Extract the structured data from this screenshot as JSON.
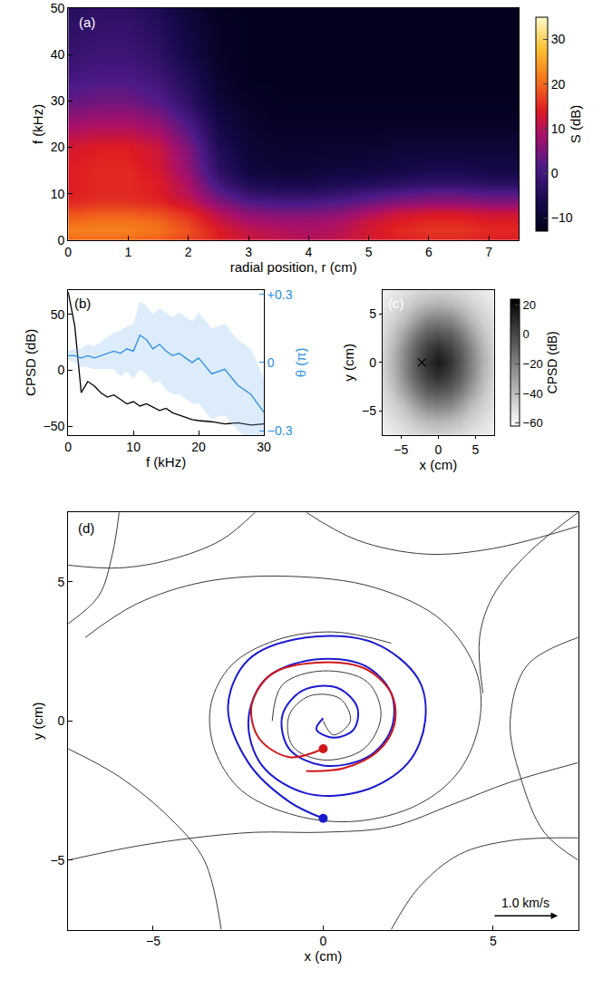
{
  "chart_data": [
    {
      "type": "heatmap",
      "panel": "(a)",
      "xlabel": "radial position, r (cm)",
      "ylabel": "f (kHz)",
      "x": [
        0,
        0.5,
        1,
        1.5,
        2,
        2.5,
        3,
        3.5,
        4,
        4.5,
        5,
        5.5,
        6,
        6.5,
        7,
        7.5
      ],
      "y": [
        0,
        2,
        4,
        6,
        8,
        10,
        12,
        15,
        20,
        25,
        30,
        35,
        40,
        45,
        50
      ],
      "z": [
        [
          20,
          20,
          20,
          19,
          17,
          14,
          12,
          11,
          10,
          11,
          13,
          14,
          15,
          15,
          14,
          14
        ],
        [
          22,
          22,
          22,
          21,
          18,
          14,
          11,
          10,
          9,
          10,
          13,
          15,
          16,
          16,
          15,
          15
        ],
        [
          20,
          21,
          21,
          20,
          17,
          12,
          9,
          8,
          8,
          9,
          12,
          14,
          15,
          15,
          14,
          14
        ],
        [
          18,
          19,
          19,
          18,
          15,
          10,
          6,
          5,
          5,
          6,
          9,
          12,
          13,
          13,
          12,
          12
        ],
        [
          15,
          16,
          16,
          15,
          12,
          6,
          2,
          1,
          1,
          2,
          4,
          6,
          7,
          7,
          6,
          6
        ],
        [
          14,
          15,
          15,
          14,
          10,
          3,
          -2,
          -3,
          -3,
          -2,
          0,
          2,
          3,
          3,
          2,
          2
        ],
        [
          14,
          15,
          15,
          14,
          9,
          0,
          -5,
          -6,
          -6,
          -5,
          -4,
          -3,
          -2,
          -2,
          -3,
          -3
        ],
        [
          14,
          15,
          15,
          13,
          7,
          -3,
          -8,
          -9,
          -9,
          -8,
          -8,
          -7,
          -6,
          -6,
          -7,
          -7
        ],
        [
          13,
          14,
          14,
          12,
          5,
          -5,
          -9,
          -10,
          -10,
          -10,
          -10,
          -9,
          -9,
          -9,
          -9,
          -9
        ],
        [
          8,
          9,
          9,
          7,
          1,
          -7,
          -10,
          -11,
          -11,
          -11,
          -11,
          -11,
          -11,
          -11,
          -11,
          -11
        ],
        [
          3,
          4,
          4,
          2,
          -3,
          -9,
          -11,
          -12,
          -12,
          -12,
          -12,
          -12,
          -12,
          -12,
          -12,
          -12
        ],
        [
          0,
          1,
          1,
          -1,
          -5,
          -10,
          -12,
          -12,
          -12,
          -12,
          -12,
          -12,
          -12,
          -12,
          -12,
          -12
        ],
        [
          -2,
          -1,
          -1,
          -3,
          -7,
          -11,
          -12,
          -12,
          -12,
          -12,
          -12,
          -12,
          -12,
          -12,
          -12,
          -12
        ],
        [
          -3,
          -2,
          -2,
          -4,
          -8,
          -11,
          -12,
          -12,
          -12,
          -12,
          -12,
          -12,
          -12,
          -12,
          -12,
          -12
        ],
        [
          -4,
          -3,
          -3,
          -5,
          -9,
          -12,
          -12,
          -12,
          -12,
          -12,
          -12,
          -12,
          -12,
          -12,
          -12,
          -12
        ]
      ],
      "xlim": [
        0,
        7.5
      ],
      "ylim": [
        0,
        50
      ],
      "xticks": [
        0,
        1,
        2,
        3,
        4,
        5,
        6,
        7
      ],
      "yticks": [
        0,
        10,
        20,
        30,
        40,
        50
      ],
      "colorbar": {
        "title": "S (dB)",
        "range": [
          -13,
          35
        ],
        "ticks": [
          {
            "value": -10,
            "label": "−10"
          },
          0,
          10,
          20,
          30
        ]
      }
    },
    {
      "type": "line",
      "panel": "(b)",
      "xlabel": "f (kHz)",
      "ylabel": "CPSD (dB)",
      "y2label": "θ (π)",
      "x": [
        0,
        1,
        2,
        3,
        4,
        5,
        6,
        7,
        8,
        9,
        10,
        11,
        12,
        13,
        14,
        15,
        16,
        17,
        18,
        19,
        20,
        22,
        24,
        26,
        28,
        30
      ],
      "series": [
        {
          "color": "#000000",
          "values": [
            70,
            40,
            -20,
            -10,
            -14,
            -20,
            -24,
            -22,
            -26,
            -30,
            -28,
            -32,
            -30,
            -33,
            -36,
            -34,
            -38,
            -40,
            -42,
            -44,
            -45,
            -46,
            -48,
            -47,
            -49,
            -48
          ]
        },
        {
          "color": "#2a8fe0",
          "axis": "y2",
          "values": [
            0.03,
            0.03,
            0.02,
            0.03,
            0.02,
            0.03,
            0.04,
            0.05,
            0.04,
            0.06,
            0.05,
            0.12,
            0.1,
            0.06,
            0.08,
            0.05,
            0.03,
            0.04,
            0.02,
            0.0,
            0.02,
            -0.05,
            -0.03,
            -0.1,
            -0.14,
            -0.22
          ],
          "error": [
            0.02,
            0.03,
            0.04,
            0.05,
            0.05,
            0.06,
            0.07,
            0.08,
            0.1,
            0.1,
            0.12,
            0.15,
            0.15,
            0.15,
            0.16,
            0.17,
            0.17,
            0.18,
            0.18,
            0.18,
            0.2,
            0.2,
            0.2,
            0.2,
            0.2,
            0.15
          ]
        }
      ],
      "xlim": [
        0,
        30
      ],
      "ylim": [
        -58,
        72
      ],
      "y2lim": [
        -0.32,
        0.32
      ],
      "xticks": [
        0,
        10,
        20,
        30
      ],
      "yticks": [
        {
          "value": -50,
          "label": "−50"
        },
        0,
        50
      ],
      "y2ticks": [
        {
          "value": -0.3,
          "label": "−0.3"
        },
        0,
        {
          "value": 0.3,
          "label": "+0.3"
        }
      ]
    },
    {
      "type": "heatmap",
      "panel": "(c)",
      "xlabel": "x (cm)",
      "ylabel": "y (cm)",
      "x": [
        -7.5,
        -6,
        -4.5,
        -3,
        -1.5,
        0,
        1.5,
        3,
        4.5,
        6,
        7.5
      ],
      "y": [
        -7.5,
        -6,
        -4.5,
        -3,
        -1.5,
        0,
        1.5,
        3,
        4.5,
        6,
        7.5
      ],
      "z": [
        [
          -58,
          -55,
          -52,
          -50,
          -48,
          -47,
          -48,
          -50,
          -52,
          -55,
          -58
        ],
        [
          -55,
          -51,
          -47,
          -42,
          -38,
          -36,
          -38,
          -42,
          -47,
          -51,
          -55
        ],
        [
          -52,
          -47,
          -40,
          -30,
          -22,
          -20,
          -22,
          -30,
          -40,
          -47,
          -52
        ],
        [
          -50,
          -42,
          -30,
          -17,
          -8,
          -5,
          -8,
          -17,
          -30,
          -42,
          -50
        ],
        [
          -48,
          -38,
          -22,
          -8,
          2,
          8,
          2,
          -8,
          -22,
          -38,
          -48
        ],
        [
          -47,
          -36,
          -20,
          -5,
          8,
          15,
          8,
          -5,
          -20,
          -36,
          -47
        ],
        [
          -48,
          -38,
          -22,
          -8,
          2,
          8,
          2,
          -8,
          -22,
          -38,
          -48
        ],
        [
          -50,
          -42,
          -30,
          -17,
          -8,
          -5,
          -8,
          -17,
          -30,
          -42,
          -50
        ],
        [
          -52,
          -47,
          -40,
          -30,
          -22,
          -20,
          -22,
          -30,
          -40,
          -47,
          -52
        ],
        [
          -55,
          -51,
          -47,
          -42,
          -38,
          -36,
          -38,
          -42,
          -47,
          -51,
          -55
        ],
        [
          -58,
          -55,
          -52,
          -50,
          -48,
          -47,
          -48,
          -50,
          -52,
          -55,
          -58
        ]
      ],
      "xlim": [
        -7.5,
        7.5
      ],
      "ylim": [
        -7.5,
        7.5
      ],
      "xticks": [
        {
          "value": -5,
          "label": "−5"
        },
        0,
        5
      ],
      "yticks": [
        {
          "value": -5,
          "label": "−5"
        },
        0,
        5
      ],
      "colorbar": {
        "title": "CPSD (dB)",
        "range": [
          -62,
          24
        ],
        "ticks": [
          {
            "value": -60,
            "label": "−60"
          },
          {
            "value": -40,
            "label": "−40"
          },
          {
            "value": -20,
            "label": "−20"
          },
          0,
          20
        ]
      },
      "probe": {
        "x": -2.2,
        "y": 0
      },
      "marker": "x"
    },
    {
      "type": "streamlines",
      "panel": "(d)",
      "xlabel": "x (cm)",
      "ylabel": "y (cm)",
      "streamlines": [
        {
          "x": [
            -7,
            -5.5,
            -3.5,
            -1,
            1.5,
            3.5,
            4.5,
            4.6,
            4,
            2.8,
            1,
            -0.8,
            -2.4,
            -3.2,
            -3.3,
            -2.7,
            -1.4,
            0.3,
            2
          ],
          "y": [
            3,
            4.2,
            5,
            5.2,
            4.8,
            3.6,
            1.8,
            0,
            -1.8,
            -3,
            -3.6,
            -3.4,
            -2.5,
            -1,
            0.6,
            2,
            2.9,
            3.2,
            2.8
          ]
        },
        {
          "x": [
            -6,
            -6.2,
            -6.6,
            -7.5
          ],
          "y": [
            7.5,
            6,
            4.5,
            3.5
          ]
        },
        {
          "x": [
            -2,
            -3,
            -4.5,
            -6,
            -7.5
          ],
          "y": [
            7.5,
            6.5,
            5.8,
            5.5,
            5.6
          ]
        },
        {
          "x": [
            -7.5,
            -6,
            -4.5,
            -3.5,
            -3
          ],
          "y": [
            -1,
            -2,
            -3.5,
            -5,
            -7.5
          ]
        },
        {
          "x": [
            -7.5,
            -5.5,
            -3.8,
            -2,
            0,
            2,
            3.8,
            5.5,
            7.5
          ],
          "y": [
            -5,
            -4.5,
            -4.2,
            -4,
            -4,
            -3.8,
            -3,
            -2.2,
            -1.5
          ]
        },
        {
          "x": [
            7.5,
            6,
            5,
            4.6,
            4.7
          ],
          "y": [
            7.5,
            6,
            4.5,
            3,
            1
          ]
        },
        {
          "x": [
            2,
            2.8,
            4,
            5.5,
            7.5
          ],
          "y": [
            -7.5,
            -6,
            -4.8,
            -4.3,
            -4.2
          ]
        },
        {
          "x": [
            7.5,
            6,
            5.5,
            5.8,
            6.5,
            7.5
          ],
          "y": [
            3,
            2,
            0,
            -2,
            -4,
            -5
          ]
        },
        {
          "x": [
            -0.5,
            1,
            3,
            5,
            7.5
          ],
          "y": [
            7.5,
            6.5,
            6,
            6.2,
            7
          ]
        },
        {
          "x": [
            -1.5,
            -1.2,
            0,
            1.3,
            1.7,
            1.2,
            0,
            -0.9,
            -1,
            -0.4,
            0.5,
            0.8,
            0.3,
            0
          ],
          "y": [
            0,
            1.3,
            1.8,
            1.4,
            0.2,
            -1,
            -1.4,
            -0.9,
            0.2,
            0.9,
            0.8,
            0,
            -0.5,
            0
          ]
        }
      ],
      "series": [
        {
          "color": "#1a1ad0",
          "x": [
            0,
            -1,
            -2.2,
            -2.8,
            -2.2,
            -0.5,
            1.5,
            2.8,
            3,
            2.5,
            1.2,
            -0.5,
            -1.8,
            -2.2,
            -1.7,
            -0.3,
            1.2,
            2,
            2,
            1.3,
            0,
            -1,
            -1.2,
            -0.6,
            0.4,
            1,
            0.9,
            0.3,
            -0.2,
            0
          ],
          "y": [
            -3.5,
            -2.9,
            -1.5,
            0.5,
            2.2,
            3,
            2.8,
            1.5,
            0,
            -1.5,
            -2.5,
            -2.6,
            -1.6,
            0,
            1.5,
            2.2,
            2,
            1,
            -0.3,
            -1.3,
            -1.6,
            -1,
            0.2,
            1.1,
            1.2,
            0.5,
            -0.3,
            -0.6,
            -0.3,
            0.1
          ]
        },
        {
          "color": "#d01818",
          "x": [
            0,
            -1,
            -1.9,
            -2.1,
            -1.5,
            -0.2,
            1.2,
            2,
            2.1,
            1.6,
            0.6,
            -0.5
          ],
          "y": [
            -1,
            -1.3,
            -0.6,
            0.6,
            1.7,
            2.1,
            1.9,
            1,
            -0.1,
            -1.1,
            -1.7,
            -1.8
          ]
        }
      ],
      "marker": "circle",
      "scale_arrow": {
        "x": [
          5.0,
          6.9
        ],
        "y": -7.0,
        "label": "1.0 km/s"
      },
      "xlim": [
        -7.5,
        7.5
      ],
      "ylim": [
        -7.5,
        7.5
      ],
      "xticks": [
        {
          "value": -5,
          "label": "−5"
        },
        0,
        5
      ],
      "yticks": [
        {
          "value": -5,
          "label": "−5"
        },
        0,
        5
      ]
    }
  ]
}
